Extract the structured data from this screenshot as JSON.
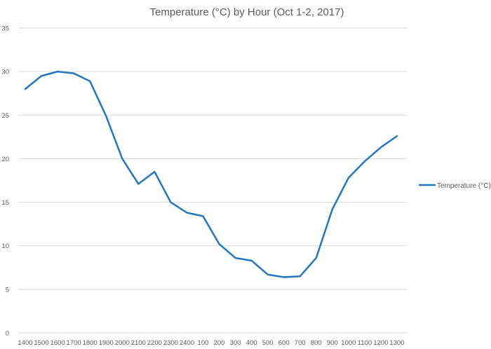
{
  "chart_data": {
    "type": "line",
    "title": "Temperature (°C) by Hour (Oct 1-2, 2017)",
    "xlabel": "",
    "ylabel": "",
    "categories": [
      "1400",
      "1500",
      "1600",
      "1700",
      "1800",
      "1900",
      "2000",
      "2100",
      "2200",
      "2300",
      "2400",
      "100",
      "200",
      "300",
      "400",
      "500",
      "600",
      "700",
      "800",
      "900",
      "1000",
      "1100",
      "1200",
      "1300"
    ],
    "series": [
      {
        "name": "Temperature (°C)",
        "color": "#1f77c4",
        "values": [
          28.0,
          29.5,
          30.0,
          29.8,
          28.9,
          24.9,
          20.0,
          17.1,
          18.5,
          15.0,
          13.8,
          13.4,
          10.2,
          8.6,
          8.3,
          6.7,
          6.4,
          6.5,
          8.6,
          14.2,
          17.8,
          19.7,
          21.3,
          22.6
        ]
      }
    ],
    "ylim": [
      0,
      35
    ],
    "yticks": [
      0,
      5,
      10,
      15,
      20,
      25,
      30,
      35
    ],
    "grid": true,
    "legend_position": "right"
  }
}
